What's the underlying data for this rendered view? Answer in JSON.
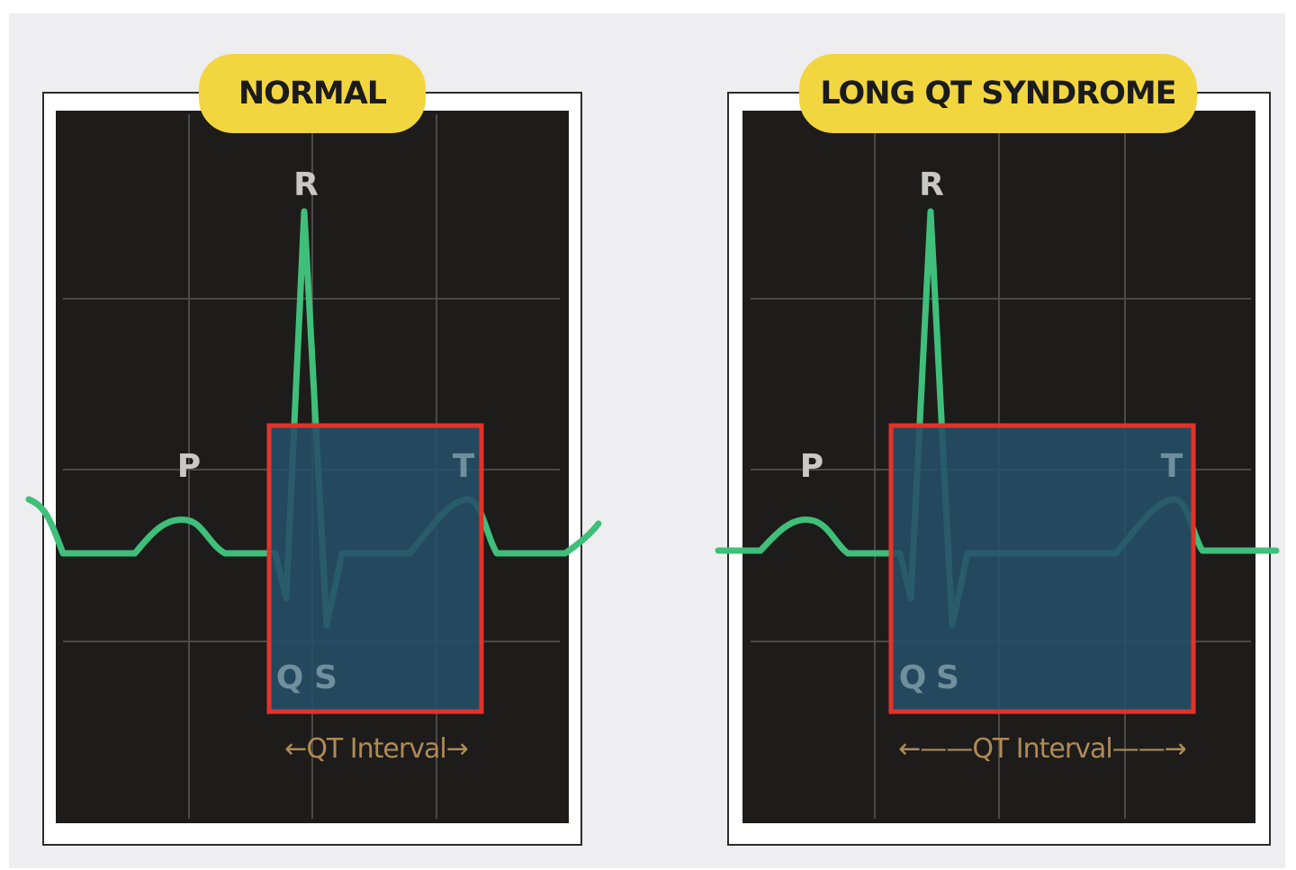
{
  "panels": [
    {
      "title": "NORMAL",
      "waves": {
        "p": "P",
        "r": "R",
        "q": "Q",
        "s": "S",
        "t": "T"
      },
      "interval_label": "QT Interval",
      "arrow_left": "←",
      "arrow_right": "→"
    },
    {
      "title": "LONG QT SYNDROME",
      "waves": {
        "p": "P",
        "r": "R",
        "q": "Q",
        "s": "S",
        "t": "T"
      },
      "interval_label": "QT Interval",
      "arrow_left": "←——",
      "arrow_right": "——→"
    }
  ],
  "colors": {
    "trace": "#3fbf7a",
    "highlight_fill": "#264e68",
    "highlight_border": "#e2332a",
    "badge": "#f2d640",
    "screen": "#1d1c1b",
    "grid": "#4a4a46",
    "interval_text": "#b08a56"
  }
}
